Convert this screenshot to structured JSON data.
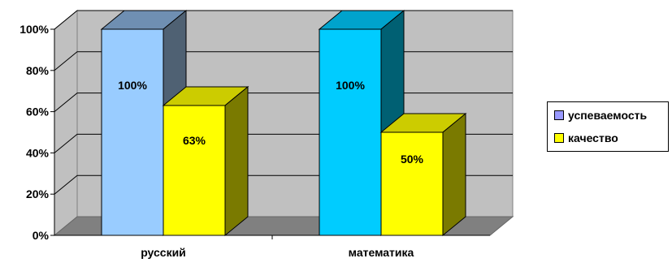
{
  "chart_data": {
    "type": "bar",
    "style": "3d-clustered-column",
    "categories": [
      "русский",
      "математика"
    ],
    "series": [
      {
        "name": "успеваемость",
        "values": [
          100,
          100
        ],
        "labels": [
          "100%",
          "100%"
        ]
      },
      {
        "name": "качество",
        "values": [
          63,
          50
        ],
        "labels": [
          "63%",
          "50%"
        ]
      }
    ],
    "yticks": [
      "0%",
      "20%",
      "40%",
      "60%",
      "80%",
      "100%"
    ],
    "ylim": [
      0,
      100
    ],
    "grid": true,
    "legend": "right",
    "colors": {
      "walls": "#c0c0c0",
      "floor": "#808080",
      "grid": "#000000",
      "legend_usp": "#9999ff",
      "legend_kach": "#ffff00",
      "bar_usp_1": {
        "front": "#99ccff",
        "side": "#4f6173",
        "top": "#6f8fb2"
      },
      "bar_usp_2": {
        "front": "#00ccff",
        "side": "#006073",
        "top": "#00a3cc"
      },
      "bar_kach": {
        "front": "#ffff00",
        "side": "#7a7a00",
        "top": "#cccc00"
      }
    }
  }
}
